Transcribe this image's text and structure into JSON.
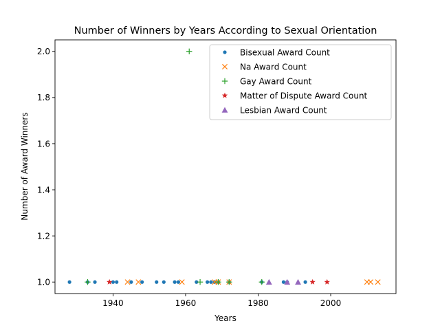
{
  "chart_data": {
    "type": "scatter",
    "title": "Number of Winners by Years According to Sexual Orientation",
    "xlabel": "Years",
    "ylabel": "Number of Award Winners",
    "xlim": [
      1924,
      2018
    ],
    "ylim": [
      0.95,
      2.05
    ],
    "xticks": [
      1940,
      1960,
      1980,
      2000
    ],
    "yticks": [
      1.0,
      1.2,
      1.4,
      1.6,
      1.8,
      2.0
    ],
    "grid": false,
    "legend_position": "upper right",
    "series": [
      {
        "name": "Bisexual Award Count",
        "marker": "dot",
        "color": "#1f77b4",
        "points": [
          [
            1928,
            1
          ],
          [
            1933,
            1
          ],
          [
            1935,
            1
          ],
          [
            1940,
            1
          ],
          [
            1941,
            1
          ],
          [
            1945,
            1
          ],
          [
            1948,
            1
          ],
          [
            1952,
            1
          ],
          [
            1954,
            1
          ],
          [
            1957,
            1
          ],
          [
            1958,
            1
          ],
          [
            1963,
            1
          ],
          [
            1966,
            1
          ],
          [
            1967,
            1
          ],
          [
            1968,
            1
          ],
          [
            1969,
            1
          ],
          [
            1972,
            1
          ],
          [
            1981,
            1
          ],
          [
            1987,
            1
          ],
          [
            1988,
            1
          ],
          [
            1993,
            1
          ]
        ]
      },
      {
        "name": "Na Award Count",
        "marker": "x",
        "color": "#ff7f0e",
        "points": [
          [
            1944,
            1
          ],
          [
            1947,
            1
          ],
          [
            1959,
            1
          ],
          [
            1968,
            1
          ],
          [
            1969,
            1
          ],
          [
            1972,
            1
          ],
          [
            2010,
            1
          ],
          [
            2011,
            1
          ],
          [
            2013,
            1
          ]
        ]
      },
      {
        "name": "Gay Award Count",
        "marker": "plus",
        "color": "#2ca02c",
        "points": [
          [
            1933,
            1
          ],
          [
            1961,
            2
          ],
          [
            1964,
            1
          ],
          [
            1969,
            1
          ],
          [
            1972,
            1
          ],
          [
            1981,
            1
          ]
        ]
      },
      {
        "name": "Matter of Dispute Award Count",
        "marker": "star",
        "color": "#d62728",
        "points": [
          [
            1939,
            1
          ],
          [
            1995,
            1
          ],
          [
            1999,
            1
          ]
        ]
      },
      {
        "name": "Lesbian Award Count",
        "marker": "triangle",
        "color": "#9467bd",
        "points": [
          [
            1983,
            1
          ],
          [
            1988,
            1
          ],
          [
            1991,
            1
          ]
        ]
      }
    ]
  }
}
